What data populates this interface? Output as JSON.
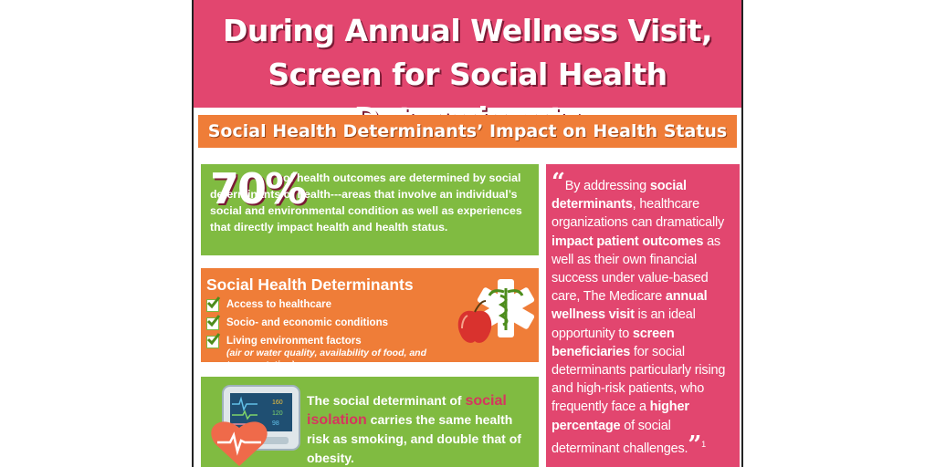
{
  "title": "During Annual Wellness Visit, Screen for Social Health Determinants",
  "subtitle": "Social Health Determinants’ Impact on Health Status",
  "stat": {
    "value": "70%",
    "text": "of health outcomes are determined by social determinants of health---areas that involve an individual’s social and environmental condition as well as experiences that directly impact health and health status."
  },
  "determinants": {
    "heading": "Social Health Determinants",
    "items": [
      {
        "label": "Access to healthcare",
        "note": ""
      },
      {
        "label": "Socio- and economic conditions",
        "note": ""
      },
      {
        "label": "Living environment factors",
        "note": "(air or water quality, availability of food, and transportation)"
      }
    ]
  },
  "isolation": {
    "pre": "The social determinant of",
    "highlight": "social isolation",
    "post": "carries the same health risk as smoking, and double that of obesity.",
    "monitor_values": [
      "160",
      "120",
      "98"
    ]
  },
  "quote": {
    "open_mark": "“",
    "p1": "By addressing",
    "b1": "social determinants",
    "p2": ", healthcare organizations can dramatically",
    "b2": "impact patient outcomes",
    "p3": "as well as their own financial success under value-based care, The Medicare",
    "b3": "annual wellness visit",
    "p4": "is an ideal opportunity to",
    "b4": "screen beneficiaries",
    "p5": "for social determinants particularly rising and high-risk patients, who frequently face a",
    "b5": "higher percentage",
    "p6": "of social determinant challenges.",
    "close_mark": "”",
    "footnote": "1"
  },
  "colors": {
    "pink": "#e2466f",
    "orange": "#ef7d38",
    "green": "#80bb41",
    "dark_accent": "#7a1b35"
  }
}
